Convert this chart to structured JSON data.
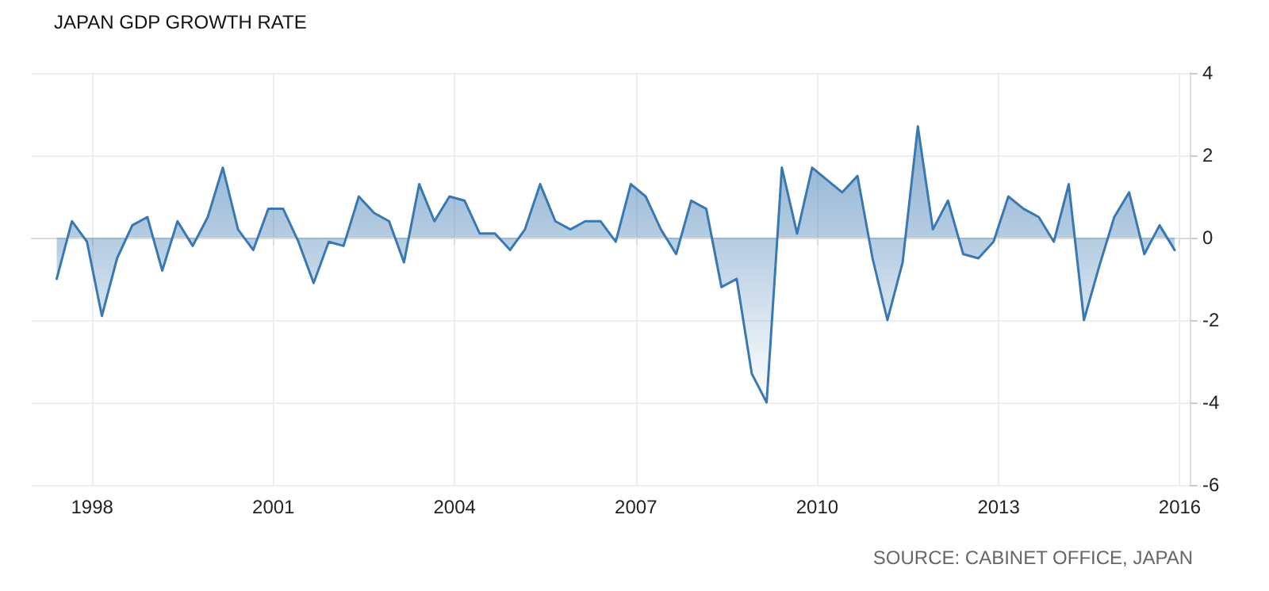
{
  "chart_data": {
    "type": "area",
    "title": "JAPAN GDP GROWTH RATE",
    "annotations": [
      "SOURCE: CABINET OFFICE, JAPAN"
    ],
    "x": [
      "1997-06",
      "1997-09",
      "1997-12",
      "1998-03",
      "1998-06",
      "1998-09",
      "1998-12",
      "1999-03",
      "1999-06",
      "1999-09",
      "1999-12",
      "2000-03",
      "2000-06",
      "2000-09",
      "2000-12",
      "2001-03",
      "2001-06",
      "2001-09",
      "2001-12",
      "2002-03",
      "2002-06",
      "2002-09",
      "2002-12",
      "2003-03",
      "2003-06",
      "2003-09",
      "2003-12",
      "2004-03",
      "2004-06",
      "2004-09",
      "2004-12",
      "2005-03",
      "2005-06",
      "2005-09",
      "2005-12",
      "2006-03",
      "2006-06",
      "2006-09",
      "2006-12",
      "2007-03",
      "2007-06",
      "2007-09",
      "2007-12",
      "2008-03",
      "2008-06",
      "2008-09",
      "2008-12",
      "2009-03",
      "2009-06",
      "2009-09",
      "2009-12",
      "2010-03",
      "2010-06",
      "2010-09",
      "2010-12",
      "2011-03",
      "2011-06",
      "2011-09",
      "2011-12",
      "2012-03",
      "2012-06",
      "2012-09",
      "2012-12",
      "2013-03",
      "2013-06",
      "2013-09",
      "2013-12",
      "2014-03",
      "2014-06",
      "2014-09",
      "2014-12",
      "2015-03",
      "2015-06",
      "2015-09",
      "2015-12"
    ],
    "series": [
      {
        "color": "#3a78b2",
        "values": [
          -1.0,
          0.4,
          -0.1,
          -1.9,
          -0.5,
          0.3,
          0.5,
          -0.8,
          0.4,
          -0.2,
          0.5,
          1.7,
          0.2,
          -0.3,
          0.7,
          0.7,
          -0.1,
          -1.1,
          -0.1,
          -0.2,
          1.0,
          0.6,
          0.4,
          -0.6,
          1.3,
          0.4,
          1.0,
          0.9,
          0.1,
          0.1,
          -0.3,
          0.2,
          1.3,
          0.4,
          0.2,
          0.4,
          0.4,
          -0.1,
          1.3,
          1.0,
          0.2,
          -0.4,
          0.9,
          0.7,
          -1.2,
          -1.0,
          -3.3,
          -4.0,
          1.7,
          0.1,
          1.7,
          1.4,
          1.1,
          1.5,
          -0.5,
          -2.0,
          -0.6,
          2.7,
          0.2,
          0.9,
          -0.4,
          -0.5,
          -0.1,
          1.0,
          0.7,
          0.5,
          -0.1,
          1.3,
          -2.0,
          -0.7,
          0.5,
          1.1,
          -0.4,
          0.3,
          -0.3
        ]
      }
    ],
    "xlim": [
      "1997-01",
      "2016-03"
    ],
    "xticks": [
      "1998",
      "2001",
      "2004",
      "2007",
      "2010",
      "2013",
      "2016"
    ],
    "ylim": [
      -6,
      4
    ],
    "yticks": [
      -6,
      -4,
      -2,
      0,
      2,
      4
    ],
    "grid": true,
    "marker": "none",
    "line_style": "solid"
  }
}
